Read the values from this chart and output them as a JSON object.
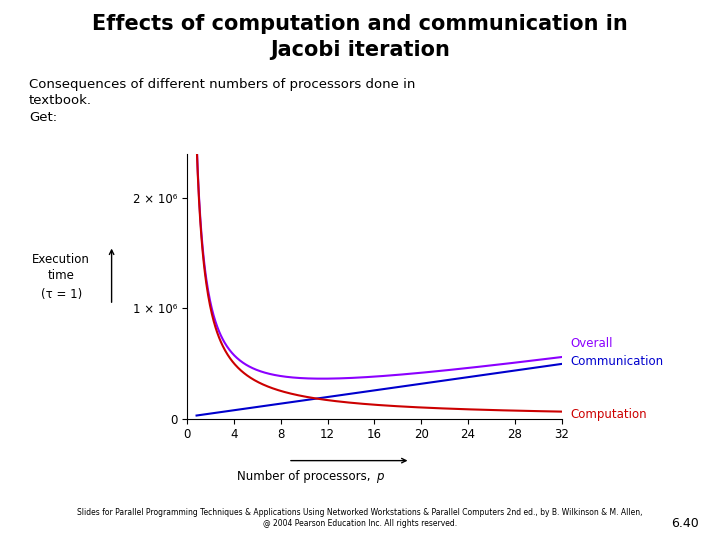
{
  "title_line1": "Effects of computation and communication in",
  "title_line2": "Jacobi iteration",
  "subtitle_line1": "Consequences of different numbers of processors done in",
  "subtitle_line2": "textbook.",
  "subtitle_line3": "Get:",
  "xlabel_text": "Number of processors, ",
  "xlabel_italic": "p",
  "ylabel_lines": [
    "Execution",
    "time",
    "(τ = 1)"
  ],
  "xlim": [
    0,
    32
  ],
  "ylim": [
    0,
    2400000.0
  ],
  "xticks": [
    0,
    4,
    8,
    12,
    16,
    20,
    24,
    28,
    32
  ],
  "ytick_vals": [
    0,
    1000000,
    2000000
  ],
  "ytick_labels": [
    "0",
    "1 × 10⁶",
    "2 × 10⁶"
  ],
  "overall_color": "#8B00FF",
  "communication_color": "#0000CD",
  "computation_color": "#CC0000",
  "background_color": "#FFFFFF",
  "footer_line1": "Slides for Parallel Programming Techniques & Applications Using Networked Workstations & Parallel Computers 2nd ed., by B. Wilkinson & M. Allen,",
  "footer_line2": "@ 2004 Pearson Education Inc. All rights reserved.",
  "page_number": "6.40",
  "n2": 2000000,
  "comm_slope": 15000,
  "comm_intercept": 15000
}
